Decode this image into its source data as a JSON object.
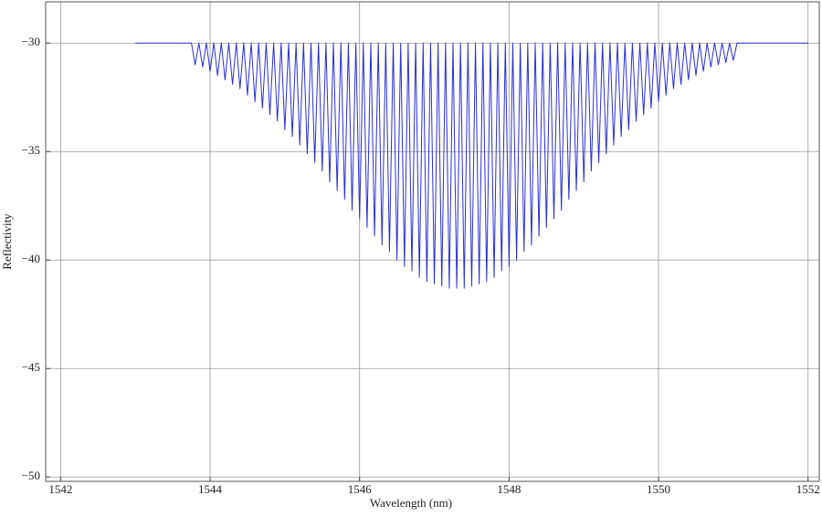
{
  "chart_data": {
    "type": "line",
    "xlabel": "Wavelength (nm)",
    "ylabel": "Reflectivity",
    "x": [
      1543,
      1543.75,
      1543.8,
      1543.85,
      1543.9,
      1543.95,
      1544,
      1544.05,
      1544.1,
      1544.15,
      1544.2,
      1544.25,
      1544.3,
      1544.35,
      1544.4,
      1544.45,
      1544.5,
      1544.55,
      1544.6,
      1544.65,
      1544.7,
      1544.75,
      1544.8,
      1544.85,
      1544.9,
      1544.95,
      1545,
      1545.05,
      1545.1,
      1545.15,
      1545.2,
      1545.25,
      1545.3,
      1545.35,
      1545.4,
      1545.45,
      1545.5,
      1545.55,
      1545.6,
      1545.65,
      1545.7,
      1545.75,
      1545.8,
      1545.85,
      1545.9,
      1545.95,
      1546,
      1546.05,
      1546.1,
      1546.15,
      1546.2,
      1546.25,
      1546.3,
      1546.35,
      1546.4,
      1546.45,
      1546.5,
      1546.55,
      1546.6,
      1546.65,
      1546.7,
      1546.75,
      1546.8,
      1546.85,
      1546.9,
      1546.95,
      1547,
      1547.05,
      1547.1,
      1547.15,
      1547.2,
      1547.25,
      1547.3,
      1547.35,
      1547.4,
      1547.45,
      1547.5,
      1547.55,
      1547.6,
      1547.65,
      1547.7,
      1547.75,
      1547.8,
      1547.85,
      1547.9,
      1547.95,
      1548,
      1548.05,
      1548.1,
      1548.15,
      1548.2,
      1548.25,
      1548.3,
      1548.35,
      1548.4,
      1548.45,
      1548.5,
      1548.55,
      1548.6,
      1548.65,
      1548.7,
      1548.75,
      1548.8,
      1548.85,
      1548.9,
      1548.95,
      1549,
      1549.05,
      1549.1,
      1549.15,
      1549.2,
      1549.25,
      1549.3,
      1549.35,
      1549.4,
      1549.45,
      1549.5,
      1549.55,
      1549.6,
      1549.65,
      1549.7,
      1549.75,
      1549.8,
      1549.85,
      1549.9,
      1549.95,
      1550,
      1550.05,
      1550.1,
      1550.15,
      1550.2,
      1550.25,
      1550.3,
      1550.35,
      1550.4,
      1550.45,
      1550.5,
      1550.55,
      1550.6,
      1550.65,
      1550.7,
      1550.75,
      1550.8,
      1550.85,
      1550.9,
      1550.95,
      1551,
      1551.05,
      1552
    ],
    "series": [
      {
        "color": "#2b2fd6",
        "values": [
          -30,
          -30,
          -31.0,
          -30,
          -31.1,
          -30,
          -31.3,
          -30,
          -31.5,
          -30,
          -31.7,
          -30,
          -31.9,
          -30,
          -32.1,
          -30,
          -32.4,
          -30,
          -32.7,
          -30,
          -33.0,
          -30,
          -33.3,
          -30,
          -33.6,
          -30,
          -34.0,
          -30,
          -34.3,
          -30,
          -34.7,
          -30,
          -35.1,
          -30,
          -35.5,
          -30,
          -35.9,
          -30,
          -36.4,
          -30,
          -36.8,
          -30,
          -37.2,
          -30,
          -37.7,
          -30,
          -38.1,
          -30,
          -38.5,
          -30,
          -38.9,
          -30,
          -39.3,
          -30,
          -39.6,
          -30,
          -40.0,
          -30,
          -40.3,
          -30,
          -40.5,
          -30,
          -40.8,
          -30,
          -41.0,
          -30,
          -41.1,
          -30,
          -41.2,
          -30,
          -41.3,
          -30,
          -41.3,
          -30,
          -41.3,
          -30,
          -41.2,
          -30,
          -41.1,
          -30,
          -41.0,
          -30,
          -40.8,
          -30,
          -40.5,
          -30,
          -40.3,
          -30,
          -40.0,
          -30,
          -39.6,
          -30,
          -39.3,
          -30,
          -38.9,
          -30,
          -38.5,
          -30,
          -38.1,
          -30,
          -37.7,
          -30,
          -37.2,
          -30,
          -36.8,
          -30,
          -36.4,
          -30,
          -35.9,
          -30,
          -35.5,
          -30,
          -35.1,
          -30,
          -34.7,
          -30,
          -34.3,
          -30,
          -34.0,
          -30,
          -33.6,
          -30,
          -33.3,
          -30,
          -33.0,
          -30,
          -32.7,
          -30,
          -32.4,
          -30,
          -32.1,
          -30,
          -31.9,
          -30,
          -31.7,
          -30,
          -31.5,
          -30,
          -31.3,
          -30,
          -31.1,
          -30,
          -31.0,
          -30,
          -30.9,
          -30,
          -30.8,
          -30,
          -30
        ]
      }
    ],
    "xlim": [
      1541.8,
      1552.15
    ],
    "ylim": [
      -50.2,
      -28.1
    ],
    "xticks": [
      1542,
      1544,
      1546,
      1548,
      1550,
      1552
    ],
    "yticks": [
      {
        "value": -30,
        "label": "−30"
      },
      {
        "value": -35,
        "label": "−35"
      },
      {
        "value": -40,
        "label": "−40"
      },
      {
        "value": -45,
        "label": "−45"
      },
      {
        "value": -50,
        "label": "−50"
      }
    ],
    "grid": true
  }
}
